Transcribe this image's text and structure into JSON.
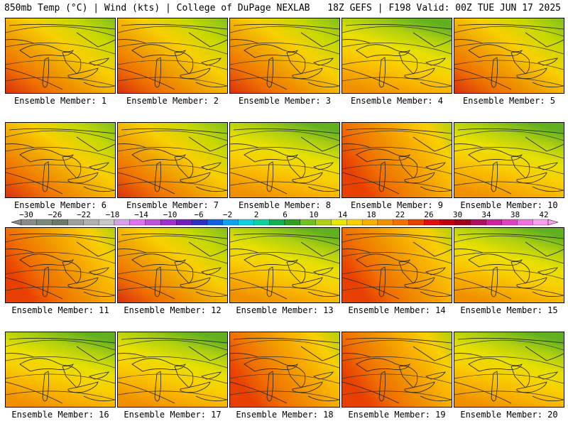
{
  "header": {
    "left": "850mb Temp (°C) | Wind (kts) | College of DuPage NEXLAB",
    "right": "18Z GEFS | F198 Valid: 00Z TUE JUN 17 2025"
  },
  "panels": [
    {
      "label": "Ensemble Member: 1",
      "warm": "sw"
    },
    {
      "label": "Ensemble Member: 2",
      "warm": "sw"
    },
    {
      "label": "Ensemble Member: 3",
      "warm": "sw"
    },
    {
      "label": "Ensemble Member: 4",
      "warm": "s"
    },
    {
      "label": "Ensemble Member: 5",
      "warm": "sw"
    },
    {
      "label": "Ensemble Member: 6",
      "warm": "sw"
    },
    {
      "label": "Ensemble Member: 7",
      "warm": "sw"
    },
    {
      "label": "Ensemble Member: 8",
      "warm": "s"
    },
    {
      "label": "Ensemble Member: 9",
      "warm": "w"
    },
    {
      "label": "Ensemble Member: 10",
      "warm": "s"
    },
    {
      "label": "Ensemble Member: 11",
      "warm": "w"
    },
    {
      "label": "Ensemble Member: 12",
      "warm": "sw"
    },
    {
      "label": "Ensemble Member: 13",
      "warm": "s"
    },
    {
      "label": "Ensemble Member: 14",
      "warm": "w"
    },
    {
      "label": "Ensemble Member: 15",
      "warm": "s"
    },
    {
      "label": "Ensemble Member: 16",
      "warm": "s"
    },
    {
      "label": "Ensemble Member: 17",
      "warm": "s"
    },
    {
      "label": "Ensemble Member: 18",
      "warm": "w"
    },
    {
      "label": "Ensemble Member: 19",
      "warm": "w"
    },
    {
      "label": "Ensemble Member: 20",
      "warm": "s"
    }
  ],
  "colorbar": {
    "labels": [
      "−30",
      "−26",
      "−22",
      "−18",
      "−14",
      "−10",
      "−6",
      "−2",
      "2",
      "6",
      "10",
      "14",
      "18",
      "22",
      "26",
      "30",
      "34",
      "38",
      "42"
    ],
    "colors": [
      "#8a8a8a",
      "#7a8a7a",
      "#6a7a6a",
      "#9aa09a",
      "#b0b0b0",
      "#c8c8c8",
      "#d8a0e8",
      "#e070f0",
      "#c050e0",
      "#a030d0",
      "#7020c0",
      "#3030c0",
      "#1060e0",
      "#10a0f0",
      "#10d0e0",
      "#10d0a0",
      "#10b050",
      "#30a020",
      "#70c020",
      "#b0d010",
      "#e8e800",
      "#f8d000",
      "#f8b000",
      "#f09000",
      "#f07000",
      "#e84000",
      "#e01010",
      "#c00010",
      "#a00020",
      "#b01060",
      "#d020a0",
      "#e040c0",
      "#f070e0",
      "#f8a0f0"
    ]
  }
}
